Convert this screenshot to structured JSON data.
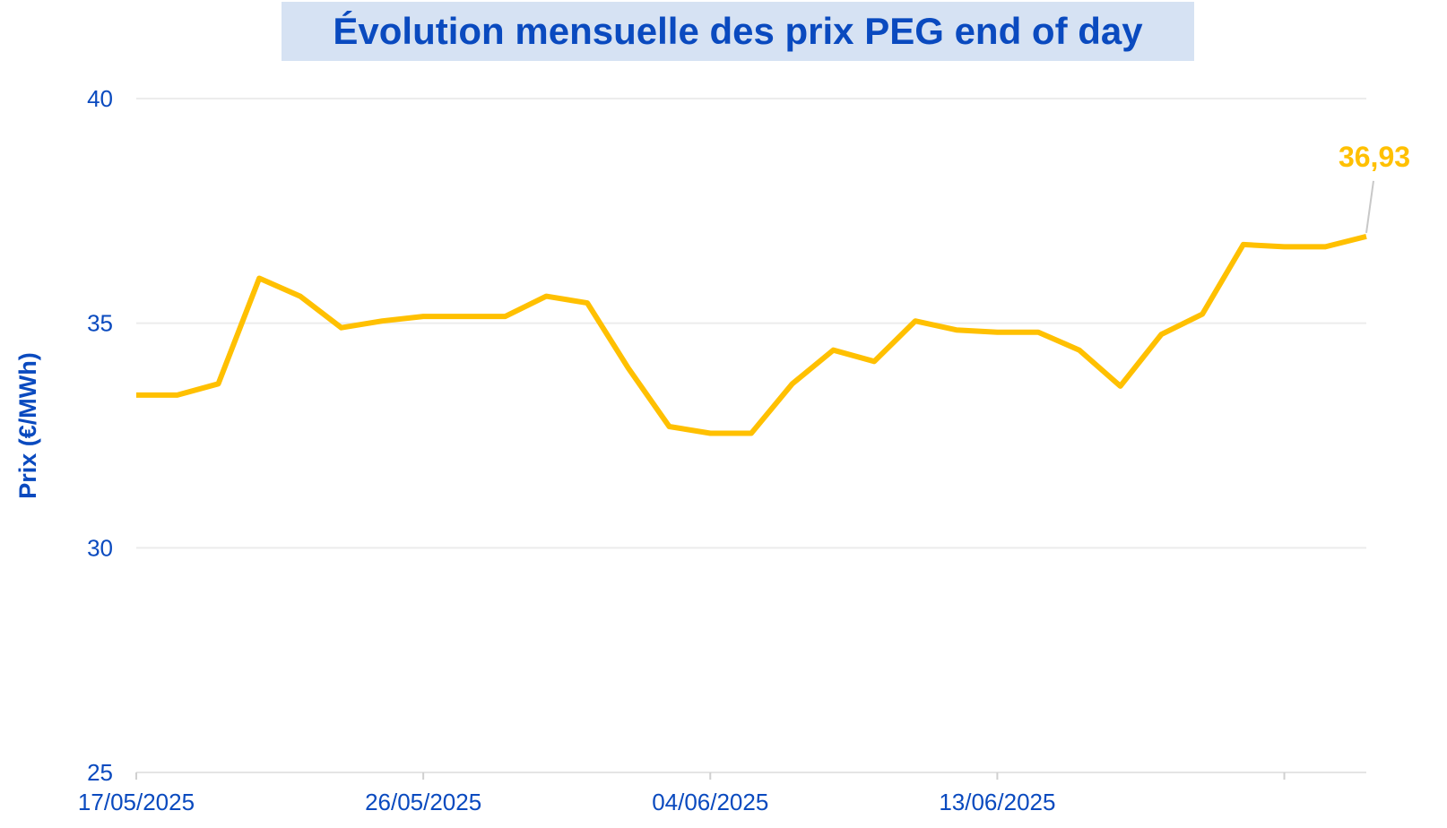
{
  "chart_data": {
    "type": "line",
    "title": "Évolution mensuelle des prix PEG end of day",
    "xlabel": "",
    "ylabel": "Prix (€/MWh)",
    "ylim": [
      25,
      40
    ],
    "yticks": [
      25,
      30,
      35,
      40
    ],
    "x_tick_labels": [
      "17/05/2025",
      "26/05/2025",
      "04/06/2025",
      "13/06/2025"
    ],
    "x_tick_indices": [
      0,
      7,
      14,
      21
    ],
    "grid": true,
    "series": [
      {
        "name": "PEG end of day",
        "color": "#ffc000",
        "values": [
          33.4,
          33.4,
          33.65,
          36.0,
          35.6,
          34.9,
          35.05,
          35.15,
          35.15,
          35.15,
          35.6,
          35.45,
          34.0,
          32.7,
          32.55,
          32.55,
          33.65,
          34.4,
          34.15,
          35.05,
          34.85,
          34.8,
          34.8,
          34.4,
          33.6,
          34.75,
          35.2,
          36.75,
          36.7,
          36.7,
          36.93
        ]
      }
    ],
    "annotation": {
      "text": "36,93",
      "point_index": 30,
      "color": "#ffc000"
    }
  }
}
